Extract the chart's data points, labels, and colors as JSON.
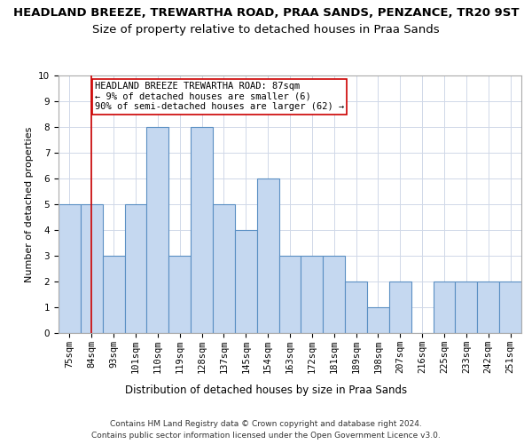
{
  "title": "HEADLAND BREEZE, TREWARTHA ROAD, PRAA SANDS, PENZANCE, TR20 9ST",
  "subtitle": "Size of property relative to detached houses in Praa Sands",
  "xlabel": "Distribution of detached houses by size in Praa Sands",
  "ylabel": "Number of detached properties",
  "categories": [
    "75sqm",
    "84sqm",
    "93sqm",
    "101sqm",
    "110sqm",
    "119sqm",
    "128sqm",
    "137sqm",
    "145sqm",
    "154sqm",
    "163sqm",
    "172sqm",
    "181sqm",
    "189sqm",
    "198sqm",
    "207sqm",
    "216sqm",
    "225sqm",
    "233sqm",
    "242sqm",
    "251sqm"
  ],
  "values": [
    5,
    5,
    3,
    5,
    8,
    3,
    8,
    5,
    4,
    6,
    3,
    3,
    3,
    2,
    1,
    2,
    0,
    2,
    2,
    2,
    2
  ],
  "bar_color": "#c5d8f0",
  "bar_edge_color": "#5a8fc3",
  "highlight_bar_index": 1,
  "highlight_line_color": "#cc0000",
  "annotation_text": "HEADLAND BREEZE TREWARTHA ROAD: 87sqm\n← 9% of detached houses are smaller (6)\n90% of semi-detached houses are larger (62) →",
  "annotation_box_color": "#ffffff",
  "annotation_box_edge_color": "#cc0000",
  "ylim": [
    0,
    10
  ],
  "yticks": [
    0,
    1,
    2,
    3,
    4,
    5,
    6,
    7,
    8,
    9,
    10
  ],
  "footer_line1": "Contains HM Land Registry data © Crown copyright and database right 2024.",
  "footer_line2": "Contains public sector information licensed under the Open Government Licence v3.0.",
  "background_color": "#ffffff",
  "grid_color": "#d0d8e8",
  "title_fontsize": 9.5,
  "subtitle_fontsize": 9.5,
  "xlabel_fontsize": 8.5,
  "ylabel_fontsize": 8,
  "tick_fontsize": 7.5,
  "annotation_fontsize": 7.5,
  "footer_fontsize": 6.5
}
